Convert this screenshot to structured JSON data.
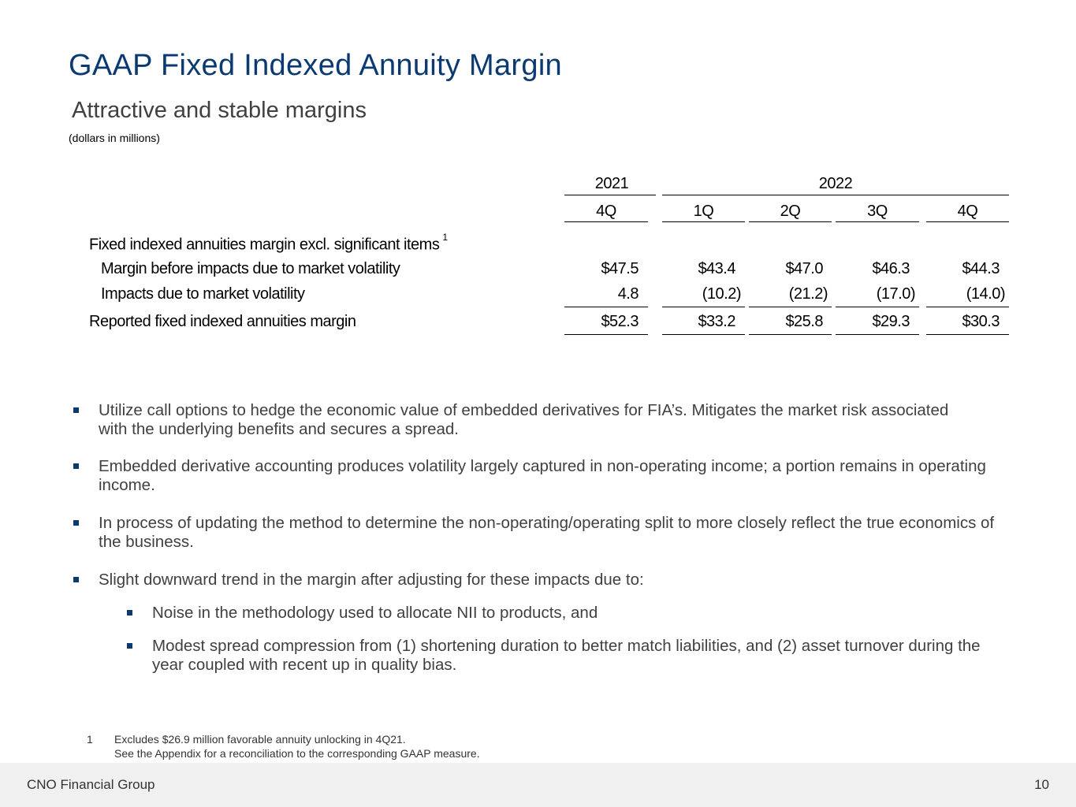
{
  "title": "GAAP Fixed Indexed Annuity Margin",
  "subtitle": "Attractive and stable margins",
  "units": "(dollars in millions)",
  "table": {
    "year_2021": "2021",
    "year_2022": "2022",
    "quarters": [
      "4Q",
      "1Q",
      "2Q",
      "3Q",
      "4Q"
    ],
    "section_label": "Fixed indexed annuities margin excl. significant items",
    "section_footnote": "1",
    "rows": [
      {
        "label": "Margin before impacts due to market volatility",
        "values": [
          "$47.5",
          "$43.4",
          "$47.0",
          "$46.3",
          "$44.3"
        ]
      },
      {
        "label": "Impacts due to market volatility",
        "values": [
          "4.8",
          "(10.2)",
          "(21.2)",
          "(17.0)",
          "(14.0)"
        ]
      },
      {
        "label": "Reported fixed indexed annuities margin",
        "values": [
          "$52.3",
          "$33.2",
          "$25.8",
          "$29.3",
          "$30.3"
        ]
      }
    ]
  },
  "bullets": [
    "Utilize call options to hedge the economic value of embedded derivatives for FIA’s. Mitigates the market risk associated with the underlying benefits and secures a spread.",
    "Embedded derivative accounting produces volatility largely captured in non-operating income; a portion remains in operating income.",
    "In process of updating the method to determine the non-operating/operating split to more closely reflect the true economics of the business.",
    "Slight downward trend in the margin after adjusting for these impacts due to:"
  ],
  "sub_bullets": [
    "Noise in the methodology used to allocate NII to products, and",
    "Modest spread compression from (1) shortening duration to better match liabilities, and (2) asset turnover during the year coupled with recent up in quality bias."
  ],
  "footnote": {
    "number": "1",
    "line1": "Excludes $26.9 million favorable annuity unlocking in 4Q21.",
    "line2": "See the Appendix for a reconciliation to the corresponding GAAP measure."
  },
  "footer": {
    "company": "CNO Financial Group",
    "page_number": "10"
  },
  "colors": {
    "title": "#0b3a72",
    "bullet_marker": "#0b3a72",
    "footer_bg": "#f0f0f0"
  }
}
